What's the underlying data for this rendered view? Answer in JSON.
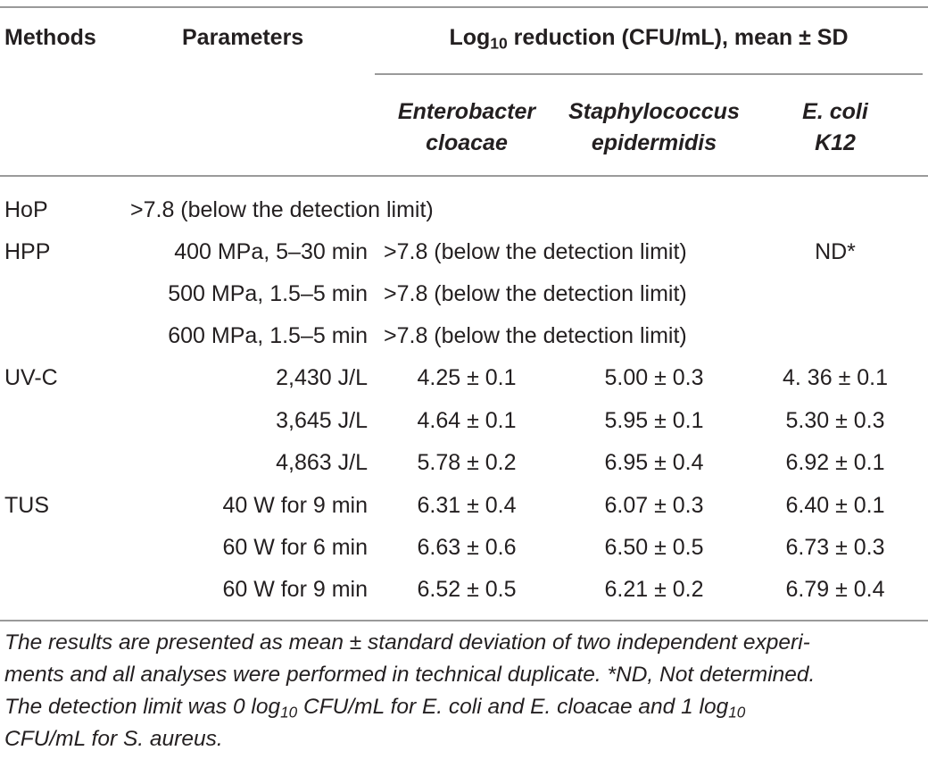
{
  "table": {
    "headers": {
      "methods": "Methods",
      "parameters": "Parameters",
      "log_prefix": "Log",
      "log_sub": "10",
      "log_suffix": " reduction (CFU/mL), mean ± SD",
      "org1_line1": "Enterobacter",
      "org1_line2": "cloacae",
      "org2_line1": "Staphylococcus",
      "org2_line2": "epidermidis",
      "org3_line1": "E. coli",
      "org3_line2": "K12"
    },
    "rows": [
      {
        "method": "HoP",
        "parameter": "",
        "span_text": ">7.8 (below the detection limit)",
        "v1": "",
        "v2": "",
        "v3": ""
      },
      {
        "method": "HPP",
        "parameter": "400 MPa, 5–30 min",
        "span_text": ">7.8 (below the detection limit)",
        "v1": "",
        "v2": "",
        "v3": "ND*"
      },
      {
        "method": "",
        "parameter": "500 MPa, 1.5–5 min",
        "span_text": ">7.8 (below the detection limit)",
        "v1": "",
        "v2": "",
        "v3": ""
      },
      {
        "method": "",
        "parameter": "600 MPa, 1.5–5 min",
        "span_text": ">7.8 (below the detection limit)",
        "v1": "",
        "v2": "",
        "v3": ""
      },
      {
        "method": "UV-C",
        "parameter": "2,430 J/L",
        "span_text": "",
        "v1": "4.25 ± 0.1",
        "v2": "5.00 ± 0.3",
        "v3": "4. 36 ± 0.1"
      },
      {
        "method": "",
        "parameter": "3,645 J/L",
        "span_text": "",
        "v1": "4.64 ± 0.1",
        "v2": "5.95 ± 0.1",
        "v3": "5.30 ± 0.3"
      },
      {
        "method": "",
        "parameter": "4,863 J/L",
        "span_text": "",
        "v1": "5.78 ± 0.2",
        "v2": "6.95 ± 0.4",
        "v3": "6.92 ± 0.1"
      },
      {
        "method": "TUS",
        "parameter": "40 W for 9 min",
        "span_text": "",
        "v1": "6.31 ± 0.4",
        "v2": "6.07 ± 0.3",
        "v3": "6.40 ± 0.1"
      },
      {
        "method": "",
        "parameter": "60 W for 6 min",
        "span_text": "",
        "v1": "6.63 ± 0.6",
        "v2": "6.50 ± 0.5",
        "v3": "6.73 ± 0.3"
      },
      {
        "method": "",
        "parameter": "60 W for 9 min",
        "span_text": "",
        "v1": "6.52 ± 0.5",
        "v2": "6.21 ± 0.2",
        "v3": "6.79 ± 0.4"
      }
    ]
  },
  "footnote": {
    "line1": "The results are presented as mean ± standard deviation of two independent experi-",
    "line2": "ments and all analyses were performed in technical duplicate. *ND, Not determined.",
    "line3_a": "The detection limit was 0 log",
    "line3_sub": "10",
    "line3_b": " CFU/mL for E. coli and E. cloacae and 1 log",
    "line3_sub2": "10",
    "line4": "CFU/mL for S. aureus."
  }
}
